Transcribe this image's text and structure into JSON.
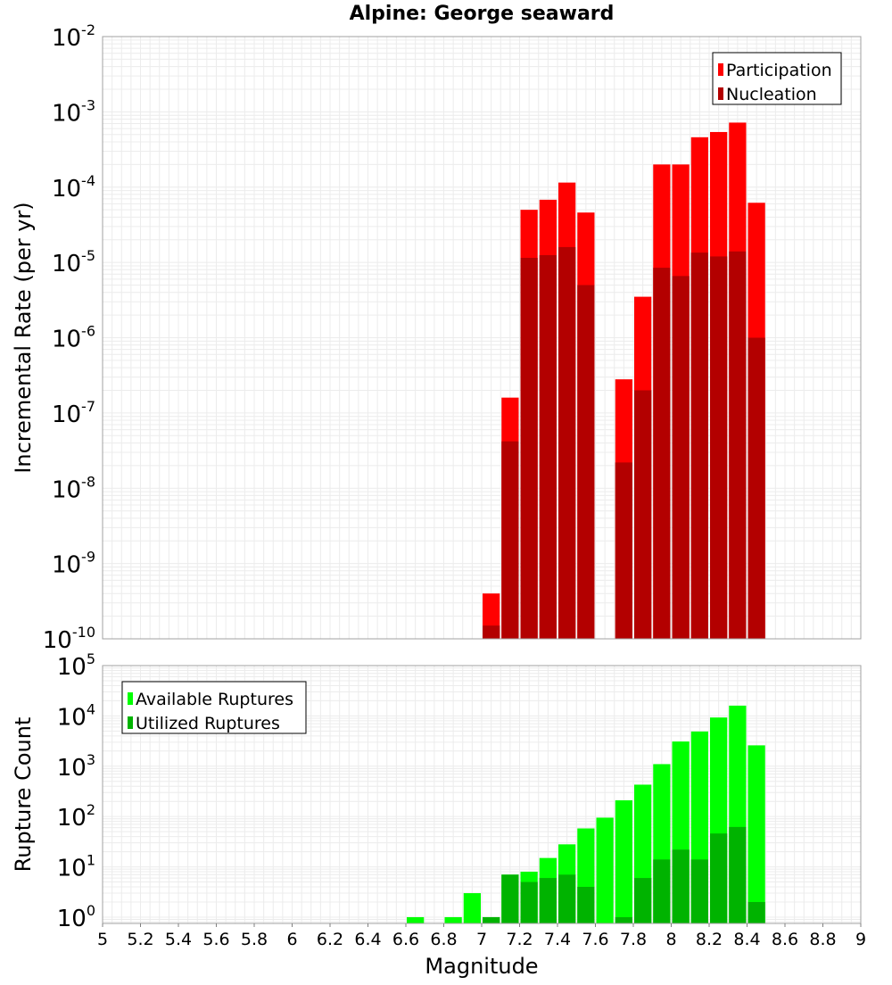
{
  "chart_data": [
    {
      "type": "bar",
      "title": "Alpine: George seaward",
      "xlabel": "",
      "ylabel": "Incremental Rate (per yr)",
      "y_scale": "log",
      "ylim": [
        1e-10,
        0.01
      ],
      "y_tick_exponents": [
        -10,
        -9,
        -8,
        -7,
        -6,
        -5,
        -4,
        -3,
        -2
      ],
      "y_tick_base": "10",
      "xlim": [
        5,
        9
      ],
      "bin_width": 0.1,
      "grid": true,
      "legend": "top-right",
      "x": [
        7.05,
        7.15,
        7.25,
        7.35,
        7.45,
        7.55,
        7.75,
        7.85,
        7.95,
        8.05,
        8.15,
        8.25,
        8.35,
        8.45
      ],
      "series": [
        {
          "name": "Participation",
          "color": "#ff0000",
          "values": [
            4e-10,
            1.6e-07,
            5e-05,
            6.8e-05,
            0.000115,
            4.6e-05,
            2.8e-07,
            3.5e-06,
            0.0002,
            0.0002,
            0.00046,
            0.00054,
            0.00072,
            6.2e-05
          ]
        },
        {
          "name": "Nucleation",
          "color": "#b30000",
          "values": [
            1.5e-10,
            4.2e-08,
            1.15e-05,
            1.25e-05,
            1.6e-05,
            5e-06,
            2.2e-08,
            2e-07,
            8.5e-06,
            6.6e-06,
            1.35e-05,
            1.2e-05,
            1.4e-05,
            1e-06
          ]
        }
      ]
    },
    {
      "type": "bar",
      "title": "",
      "xlabel": "Magnitude",
      "ylabel": "Rupture Count",
      "y_scale": "log",
      "ylim": [
        0.75,
        100000
      ],
      "y_tick_exponents": [
        0,
        1,
        2,
        3,
        4,
        5
      ],
      "y_tick_base": "10",
      "xlim": [
        5,
        9
      ],
      "x_ticks": [
        "5",
        "5.2",
        "5.4",
        "5.6",
        "5.8",
        "6",
        "6.2",
        "6.4",
        "6.6",
        "6.8",
        "7",
        "7.2",
        "7.4",
        "7.6",
        "7.8",
        "8",
        "8.2",
        "8.4",
        "8.6",
        "8.8",
        "9"
      ],
      "bin_width": 0.1,
      "grid": true,
      "legend": "top-left",
      "x": [
        6.65,
        6.75,
        6.85,
        6.95,
        7.05,
        7.15,
        7.25,
        7.35,
        7.45,
        7.55,
        7.65,
        7.75,
        7.85,
        7.95,
        8.05,
        8.15,
        8.25,
        8.35,
        8.45
      ],
      "series": [
        {
          "name": "Available Ruptures",
          "color": "#00ff00",
          "values": [
            1,
            0,
            1,
            3,
            1,
            7,
            8,
            15,
            28,
            58,
            95,
            210,
            430,
            1100,
            3100,
            4900,
            9300,
            16000,
            2600
          ]
        },
        {
          "name": "Utilized Ruptures",
          "color": "#00b300",
          "values": [
            0,
            0,
            0,
            0,
            1,
            7,
            5,
            6,
            7,
            4,
            0,
            1,
            6,
            14,
            22,
            14,
            46,
            62,
            2
          ]
        }
      ]
    }
  ]
}
